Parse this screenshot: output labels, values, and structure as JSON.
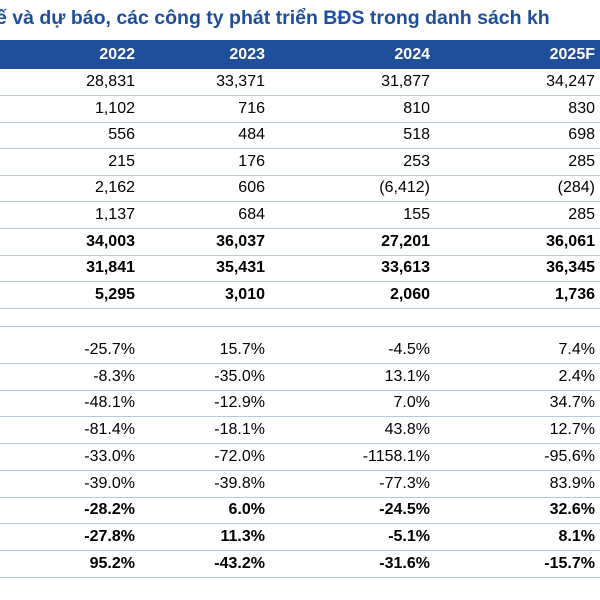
{
  "title": "ế và dự báo, các công ty phát triển BĐS trong danh sách kh",
  "columns": [
    "2022",
    "2023",
    "2024",
    "2025F"
  ],
  "section1": [
    {
      "bold": false,
      "values": [
        "28,831",
        "33,371",
        "31,877",
        "34,247"
      ]
    },
    {
      "bold": false,
      "values": [
        "1,102",
        "716",
        "810",
        "830"
      ]
    },
    {
      "bold": false,
      "values": [
        "556",
        "484",
        "518",
        "698"
      ]
    },
    {
      "bold": false,
      "values": [
        "215",
        "176",
        "253",
        "285"
      ]
    },
    {
      "bold": false,
      "values": [
        "2,162",
        "606",
        "(6,412)",
        "(284)"
      ]
    },
    {
      "bold": false,
      "values": [
        "1,137",
        "684",
        "155",
        "285"
      ]
    },
    {
      "bold": true,
      "values": [
        "34,003",
        "36,037",
        "27,201",
        "36,061"
      ]
    },
    {
      "bold": true,
      "values": [
        "31,841",
        "35,431",
        "33,613",
        "36,345"
      ]
    },
    {
      "bold": true,
      "values": [
        "5,295",
        "3,010",
        "2,060",
        "1,736"
      ]
    }
  ],
  "section2": [
    {
      "bold": false,
      "values": [
        "-25.7%",
        "15.7%",
        "-4.5%",
        "7.4%"
      ]
    },
    {
      "bold": false,
      "values": [
        "-8.3%",
        "-35.0%",
        "13.1%",
        "2.4%"
      ]
    },
    {
      "bold": false,
      "values": [
        "-48.1%",
        "-12.9%",
        "7.0%",
        "34.7%"
      ]
    },
    {
      "bold": false,
      "values": [
        "-81.4%",
        "-18.1%",
        "43.8%",
        "12.7%"
      ]
    },
    {
      "bold": false,
      "values": [
        "-33.0%",
        "-72.0%",
        "-1158.1%",
        "-95.6%"
      ]
    },
    {
      "bold": false,
      "values": [
        "-39.0%",
        "-39.8%",
        "-77.3%",
        "83.9%"
      ]
    },
    {
      "bold": true,
      "values": [
        "-28.2%",
        "6.0%",
        "-24.5%",
        "32.6%"
      ]
    },
    {
      "bold": true,
      "values": [
        "-27.8%",
        "11.3%",
        "-5.1%",
        "8.1%"
      ]
    },
    {
      "bold": true,
      "values": [
        "95.2%",
        "-43.2%",
        "-31.6%",
        "-15.7%"
      ]
    }
  ]
}
